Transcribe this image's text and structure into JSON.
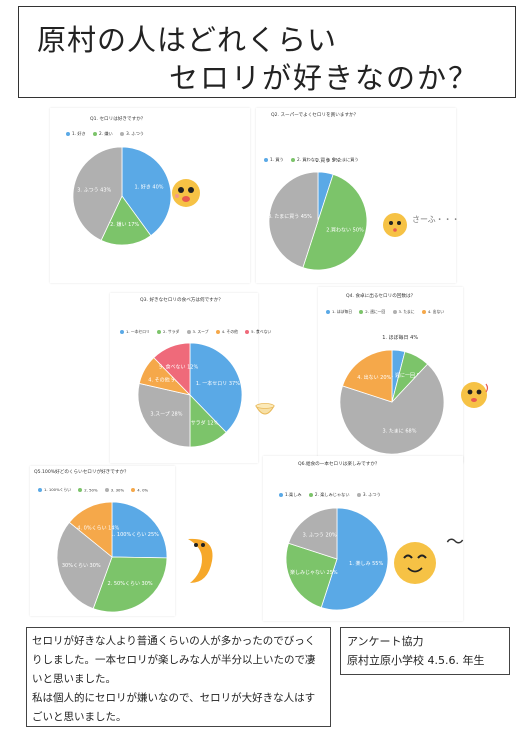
{
  "title": {
    "line1": "原村の人はどれくらい",
    "line2": "セロリが好きなのか？"
  },
  "colors": {
    "blue": "#5aa9e6",
    "green": "#7cc46a",
    "gray": "#b0b0b0",
    "orange": "#f5a84a",
    "pink": "#ef6a7a"
  },
  "chart_data": [
    {
      "type": "pie",
      "title": "Q1. セロリは好きですか？",
      "categories": [
        "1. 好き",
        "2. 嫌い",
        "3. ふつう"
      ],
      "values": [
        40,
        17,
        43
      ],
      "slice_labels": [
        "1. 好き 40%",
        "2. 嫌い 17%",
        "3. ふつう 43%"
      ]
    },
    {
      "type": "pie",
      "title": "Q2. スーパーでよくセロリを買いますか？",
      "categories": [
        "1. 買う",
        "2. 買わない",
        "3. たまに買う"
      ],
      "values": [
        5,
        50,
        45
      ],
      "slice_labels": [
        "1.買う 5%",
        "2.買わない 50%",
        "3. たまに買う 45%"
      ]
    },
    {
      "type": "pie",
      "title": "Q3. 好きなセロリの食べ方は何ですか？",
      "categories": [
        "1. 一本セロリ",
        "2. サラダ",
        "3. スープ",
        "4. その他",
        "5. 食べない"
      ],
      "values": [
        37,
        12,
        28,
        9,
        12
      ],
      "slice_labels": [
        "1. 一本セロリ 37%",
        "2. サラダ 12%",
        "3.スープ 28%",
        "4. その他 9%",
        "5. 食べない 12%"
      ]
    },
    {
      "type": "pie",
      "title": "Q4. 食卓に出るセロリの回数は？",
      "categories": [
        "1. ほぼ毎日",
        "2. 週に一回",
        "3. たまに",
        "4. 出ない"
      ],
      "values": [
        4,
        8,
        68,
        20
      ],
      "slice_labels": [
        "1. ほぼ毎日 4%",
        "2. 週に一回 8%",
        "3. たまに 68%",
        "4. 出ない 20%"
      ]
    },
    {
      "type": "pie",
      "title": "Q5.100%好どのくらいセロリが好きですか？",
      "categories": [
        "1. 100%くらい",
        "2. 50%",
        "3. 30%",
        "4. 0%"
      ],
      "values": [
        25,
        30,
        30,
        14
      ],
      "slice_labels": [
        "1. 100%くらい 25%",
        "2. 50%くらい 30%",
        "30%くらい 30%",
        "4. 0%くらい 14%"
      ]
    },
    {
      "type": "pie",
      "title": "Q6.給食の一本セロリは楽しみですか？",
      "categories": [
        "1.楽しみ",
        "2. 楽しみじゃない",
        "3. ふつう"
      ],
      "values": [
        55,
        25,
        20
      ],
      "slice_labels": [
        "1. 楽しみ 55%",
        "2. 楽しみじゃない 25%",
        "3. ふつう 20%"
      ]
    }
  ],
  "comment": {
    "para1": "セロリが好きな人より普通くらいの人が多かったのでびっくりしました。一本セロリが楽しみな人が半分以上いたので凄いと思いました。",
    "para2": "私は個人的にセロリが嫌いなので、セロリが大好きな人はすごいと思いました。"
  },
  "credit": {
    "line1": "アンケート協力",
    "line2": "原村立原小学校 4.5.6. 年生"
  },
  "decor": {
    "q2_sound": "さーふ・・・",
    "q6_sound": "〜"
  }
}
